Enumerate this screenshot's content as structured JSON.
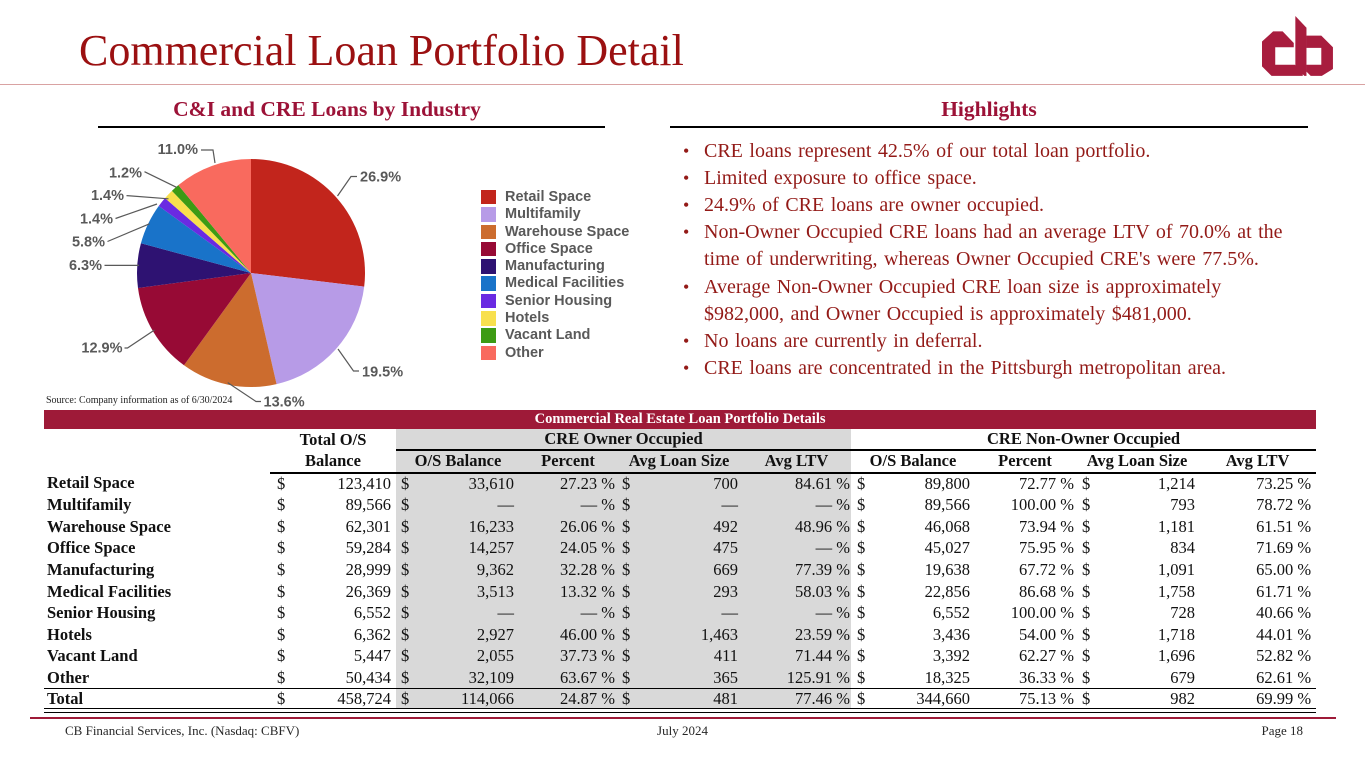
{
  "slide": {
    "title": "Commercial Loan Portfolio Detail",
    "logo": "cb-monogram"
  },
  "left_section": {
    "heading": "C&I and CRE Loans by Industry",
    "source_note": "Source: Company information as of 6/30/2024"
  },
  "right_section": {
    "heading": "Highlights",
    "bullets": [
      "CRE loans represent 42.5% of our total loan portfolio.",
      "Limited exposure to office space.",
      "24.9% of CRE loans are owner occupied.",
      "Non-Owner Occupied CRE loans had an average LTV of 70.0% at the time of underwriting, whereas Owner Occupied CRE's were 77.5%.",
      "Average Non-Owner Occupied CRE loan size is approximately $982,000, and Owner Occupied is approximately $481,000.",
      "No loans are currently in deferral.",
      "CRE loans are concentrated in the Pittsburgh metropolitan area."
    ]
  },
  "chart_data": [
    {
      "type": "pie",
      "title": "C&I and CRE Loans by Industry",
      "categories": [
        "Retail Space",
        "Multifamily",
        "Warehouse Space",
        "Office Space",
        "Manufacturing",
        "Medical Facilities",
        "Senior Housing",
        "Hotels",
        "Vacant Land",
        "Other"
      ],
      "values": [
        26.9,
        19.5,
        13.6,
        12.9,
        6.3,
        5.8,
        1.4,
        1.4,
        1.2,
        11.0
      ],
      "colors": [
        "#C2251C",
        "#B79BE7",
        "#CC6C2E",
        "#970A35",
        "#2E1272",
        "#1973C9",
        "#6A2AE2",
        "#F8E04E",
        "#3D9B14",
        "#F96A5E"
      ],
      "legend_position": "right",
      "start_angle_deg": 0,
      "direction": "clockwise"
    },
    {
      "type": "table",
      "title": "Commercial Real Estate Loan Portfolio Details",
      "currency_symbol": "$",
      "group_headers": [
        "Total O/S",
        "CRE Owner Occupied",
        "CRE Non-Owner Occupied"
      ],
      "columns": [
        "Balance",
        "O/S Balance",
        "Percent",
        "Avg Loan Size",
        "Avg LTV",
        "O/S Balance",
        "Percent",
        "Avg Loan Size",
        "Avg LTV"
      ],
      "rows": [
        [
          "Retail Space",
          "123,410",
          "33,610",
          "27.23 %",
          "700",
          "84.61 %",
          "89,800",
          "72.77 %",
          "1,214",
          "73.25 %"
        ],
        [
          "Multifamily",
          "89,566",
          "—",
          "— %",
          "—",
          "— %",
          "89,566",
          "100.00 %",
          "793",
          "78.72 %"
        ],
        [
          "Warehouse Space",
          "62,301",
          "16,233",
          "26.06 %",
          "492",
          "48.96 %",
          "46,068",
          "73.94 %",
          "1,181",
          "61.51 %"
        ],
        [
          "Office Space",
          "59,284",
          "14,257",
          "24.05 %",
          "475",
          "— %",
          "45,027",
          "75.95 %",
          "834",
          "71.69 %"
        ],
        [
          "Manufacturing",
          "28,999",
          "9,362",
          "32.28 %",
          "669",
          "77.39 %",
          "19,638",
          "67.72 %",
          "1,091",
          "65.00 %"
        ],
        [
          "Medical Facilities",
          "26,369",
          "3,513",
          "13.32 %",
          "293",
          "58.03 %",
          "22,856",
          "86.68 %",
          "1,758",
          "61.71 %"
        ],
        [
          "Senior Housing",
          "6,552",
          "—",
          "— %",
          "—",
          "— %",
          "6,552",
          "100.00 %",
          "728",
          "40.66 %"
        ],
        [
          "Hotels",
          "6,362",
          "2,927",
          "46.00 %",
          "1,463",
          "23.59 %",
          "3,436",
          "54.00 %",
          "1,718",
          "44.01 %"
        ],
        [
          "Vacant Land",
          "5,447",
          "2,055",
          "37.73 %",
          "411",
          "71.44 %",
          "3,392",
          "62.27 %",
          "1,696",
          "52.82 %"
        ],
        [
          "Other",
          "50,434",
          "32,109",
          "63.67 %",
          "365",
          "125.91 %",
          "18,325",
          "36.33 %",
          "679",
          "62.61 %"
        ]
      ],
      "total_row": [
        "Total",
        "458,724",
        "114,066",
        "24.87 %",
        "481",
        "77.46 %",
        "344,660",
        "75.13 %",
        "982",
        "69.99 %"
      ]
    }
  ],
  "footer": {
    "left": "CB Financial Services, Inc. (Nasdaq: CBFV)",
    "center": "July 2024",
    "right": "Page 18"
  },
  "colors": {
    "title_red": "#9B1011",
    "heading_crimson": "#9C1237",
    "bullet_red": "#931A17",
    "banner_bg": "#9E1A38",
    "logo_crimson": "#A81D3E",
    "table_band_gray": "#D9D9D9",
    "label_gray": "#595959"
  }
}
